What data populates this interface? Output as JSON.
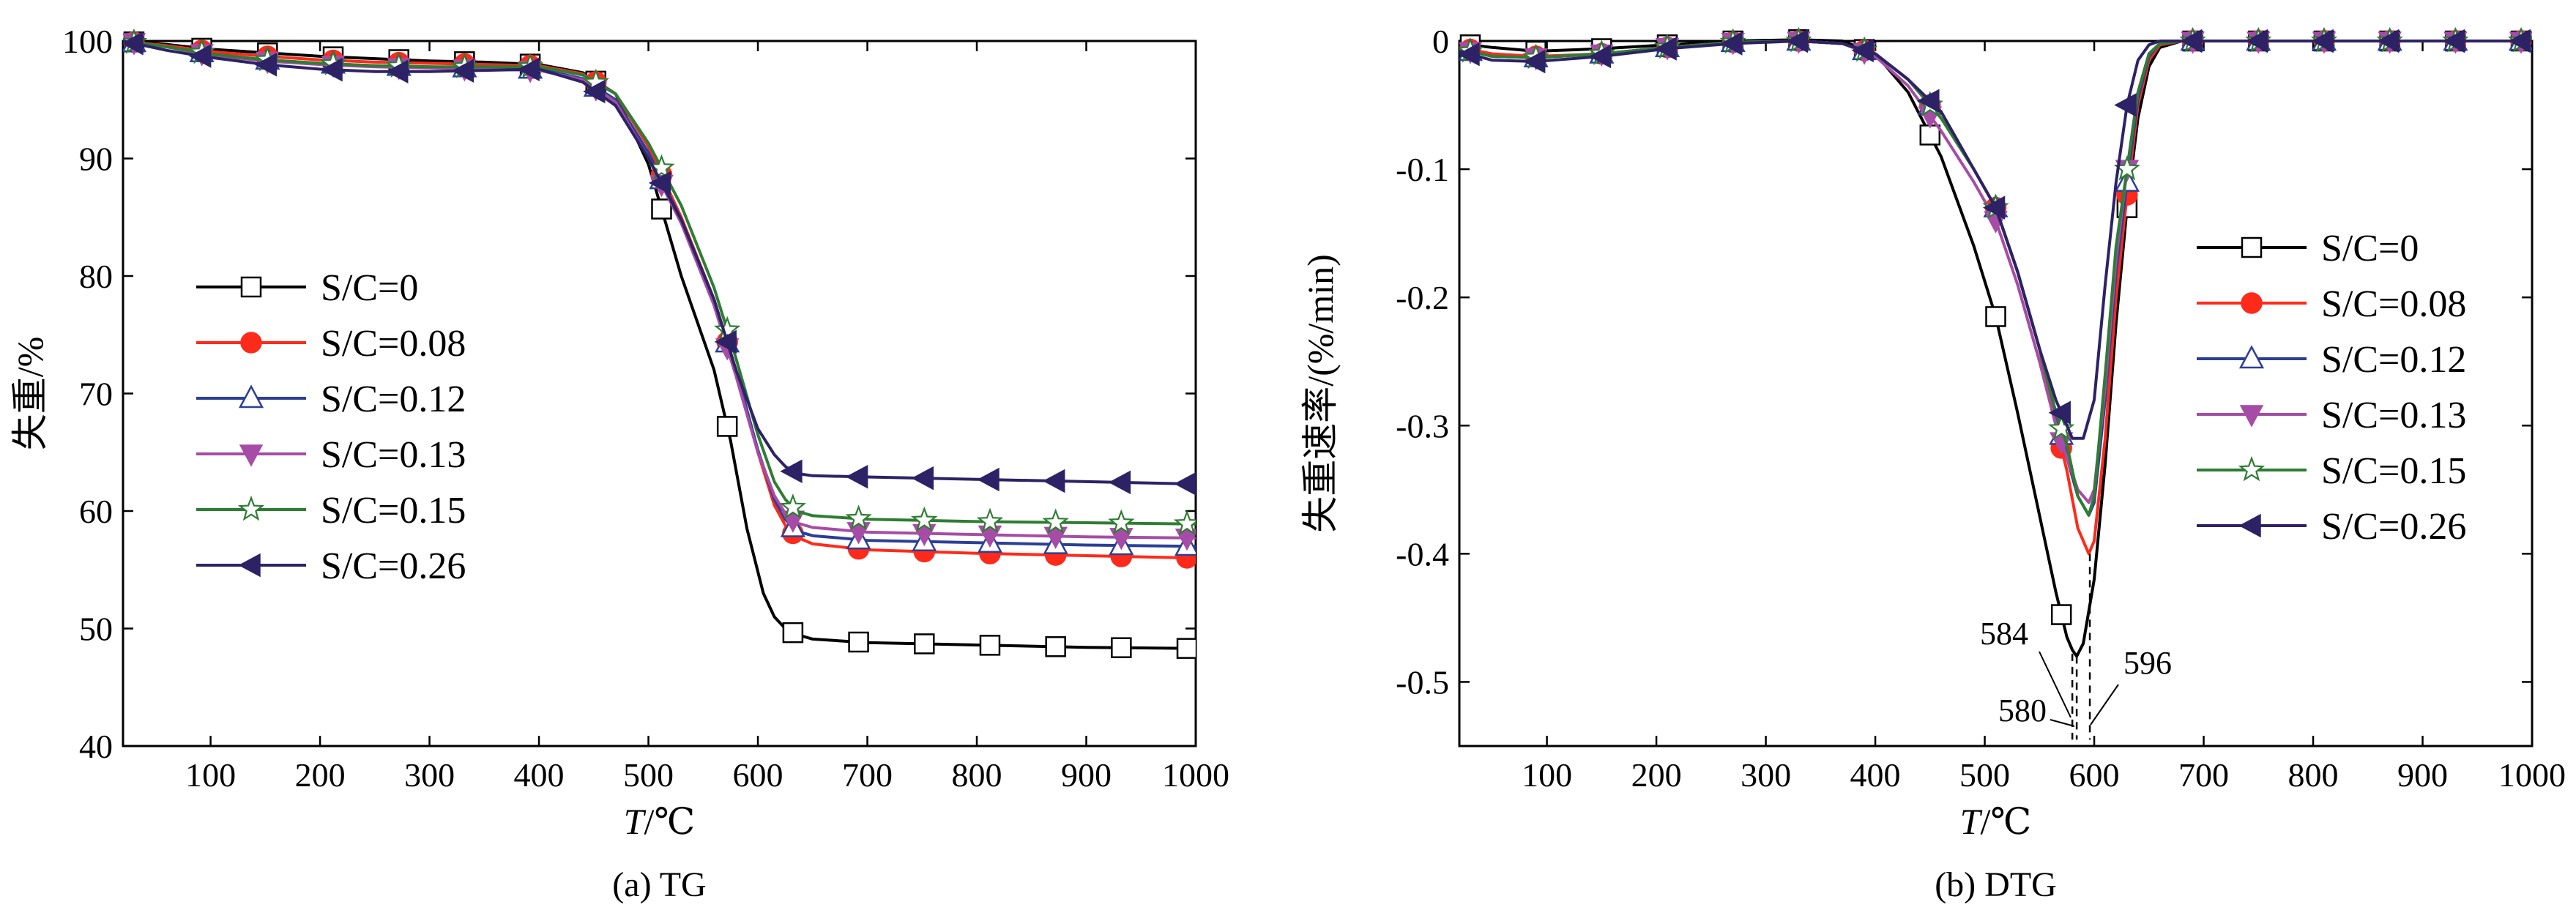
{
  "chart_data": [
    {
      "id": "tg",
      "type": "line",
      "caption": "(a) TG",
      "xlabel_italic": "T",
      "xlabel_rest": "/℃",
      "ylabel": "失重/%",
      "xlim": [
        20,
        1000
      ],
      "ylim": [
        40,
        100
      ],
      "xticks": [
        "100",
        "200",
        "300",
        "400",
        "500",
        "600",
        "700",
        "800",
        "900",
        "1000"
      ],
      "yticks": [
        "40",
        "50",
        "60",
        "70",
        "80",
        "90",
        "100"
      ],
      "legend_position": "left-middle",
      "marker_x": [
        30,
        92,
        152,
        212,
        272,
        332,
        392,
        452,
        512,
        572,
        632,
        692,
        752,
        812,
        872,
        932,
        992
      ],
      "series": [
        {
          "name": "S/C=0",
          "color": "#000000",
          "marker": "square-open",
          "x": [
            20,
            60,
            100,
            150,
            200,
            250,
            300,
            350,
            400,
            440,
            470,
            500,
            530,
            560,
            575,
            590,
            605,
            615,
            625,
            635,
            650,
            700,
            800,
            900,
            1000
          ],
          "y": [
            100,
            99.7,
            99.3,
            99,
            98.7,
            98.5,
            98.3,
            98.2,
            98,
            97.3,
            95.5,
            89.5,
            80,
            72,
            66,
            58.5,
            53,
            51,
            50,
            49.5,
            49.1,
            48.8,
            48.6,
            48.4,
            48.3
          ]
        },
        {
          "name": "S/C=0.08",
          "color": "#ff2a1a",
          "marker": "circle-filled",
          "x": [
            20,
            60,
            100,
            150,
            200,
            250,
            300,
            350,
            400,
            440,
            470,
            500,
            530,
            560,
            580,
            600,
            615,
            625,
            635,
            650,
            700,
            800,
            900,
            1000
          ],
          "y": [
            100,
            99.6,
            99.1,
            98.7,
            98.4,
            98.2,
            98.1,
            98,
            97.9,
            97.2,
            95.5,
            91,
            85,
            78,
            72,
            65,
            60.5,
            58.8,
            57.8,
            57.2,
            56.7,
            56.4,
            56.2,
            56
          ]
        },
        {
          "name": "S/C=0.12",
          "color": "#2b3f97",
          "marker": "triangle-up-open",
          "x": [
            20,
            60,
            100,
            150,
            200,
            250,
            300,
            350,
            400,
            440,
            470,
            500,
            530,
            560,
            580,
            600,
            615,
            625,
            635,
            650,
            700,
            800,
            900,
            1000
          ],
          "y": [
            100,
            99.5,
            98.9,
            98.4,
            98.1,
            97.9,
            97.8,
            97.7,
            97.6,
            96.8,
            95,
            90.5,
            84.8,
            77.8,
            72,
            65.2,
            61,
            59.3,
            58.3,
            57.9,
            57.5,
            57.3,
            57.1,
            57
          ]
        },
        {
          "name": "S/C=0.13",
          "color": "#a64ca6",
          "marker": "triangle-down-filled",
          "x": [
            20,
            60,
            100,
            150,
            200,
            250,
            300,
            350,
            400,
            440,
            470,
            500,
            530,
            560,
            580,
            600,
            615,
            625,
            635,
            650,
            700,
            800,
            900,
            1000
          ],
          "y": [
            100,
            99.5,
            98.8,
            98.3,
            98,
            97.8,
            97.7,
            97.6,
            97.5,
            96.7,
            94.8,
            90,
            84.5,
            77.5,
            71.5,
            65,
            61.3,
            59.8,
            59,
            58.6,
            58.2,
            58,
            57.8,
            57.7
          ]
        },
        {
          "name": "S/C=0.15",
          "color": "#2e7d32",
          "marker": "star-open",
          "x": [
            20,
            60,
            100,
            150,
            200,
            250,
            300,
            350,
            400,
            440,
            470,
            500,
            530,
            560,
            580,
            600,
            615,
            625,
            635,
            650,
            700,
            800,
            900,
            1000
          ],
          "y": [
            100,
            99.5,
            98.9,
            98.4,
            98.1,
            97.9,
            97.8,
            97.8,
            97.8,
            97.1,
            95.5,
            91.3,
            86,
            79,
            73,
            66.5,
            62.5,
            61,
            60,
            59.6,
            59.3,
            59.1,
            59,
            58.9
          ]
        },
        {
          "name": "S/C=0.26",
          "color": "#2e2266",
          "marker": "triangle-left-filled",
          "x": [
            20,
            60,
            100,
            150,
            200,
            250,
            300,
            350,
            400,
            440,
            470,
            500,
            530,
            560,
            580,
            600,
            615,
            625,
            635,
            650,
            700,
            800,
            900,
            1000
          ],
          "y": [
            100,
            99.2,
            98.6,
            98,
            97.6,
            97.4,
            97.4,
            97.5,
            97.6,
            96.5,
            94.5,
            90,
            84.8,
            78,
            72,
            67,
            64.8,
            63.8,
            63.2,
            63,
            62.9,
            62.7,
            62.5,
            62.3
          ]
        }
      ]
    },
    {
      "id": "dtg",
      "type": "line",
      "caption": "(b) DTG",
      "xlabel_italic": "T",
      "xlabel_rest": "/℃",
      "ylabel": "失重速率/(%/min)",
      "xlim": [
        20,
        1000
      ],
      "ylim": [
        -0.55,
        0.0
      ],
      "xticks": [
        "100",
        "200",
        "300",
        "400",
        "500",
        "600",
        "700",
        "800",
        "900",
        "1000"
      ],
      "yticks": [
        "-0.5",
        "-0.4",
        "-0.3",
        "-0.2",
        "-0.1",
        "0"
      ],
      "legend_position": "right-middle",
      "marker_x": [
        30,
        90,
        150,
        210,
        270,
        330,
        390,
        450,
        510,
        570,
        630,
        690,
        750,
        810,
        870,
        930,
        990
      ],
      "annotations": [
        "584",
        "580",
        "596"
      ],
      "series": [
        {
          "name": "S/C=0",
          "color": "#000000",
          "marker": "square-open",
          "x": [
            20,
            50,
            90,
            150,
            210,
            270,
            330,
            370,
            400,
            430,
            460,
            490,
            510,
            530,
            550,
            565,
            575,
            580,
            584,
            590,
            600,
            610,
            620,
            630,
            640,
            650,
            660,
            680,
            700,
            800,
            900,
            1000
          ],
          "y": [
            -0.002,
            -0.005,
            -0.008,
            -0.006,
            -0.003,
            0.0,
            0.001,
            0.0,
            -0.01,
            -0.04,
            -0.09,
            -0.16,
            -0.215,
            -0.29,
            -0.37,
            -0.43,
            -0.465,
            -0.475,
            -0.48,
            -0.47,
            -0.42,
            -0.33,
            -0.22,
            -0.13,
            -0.06,
            -0.02,
            -0.005,
            0.0,
            0.0,
            0.0,
            0.0,
            0.0
          ]
        },
        {
          "name": "S/C=0.08",
          "color": "#ff2a1a",
          "marker": "circle-filled",
          "x": [
            20,
            50,
            90,
            150,
            210,
            270,
            330,
            370,
            400,
            430,
            460,
            490,
            510,
            530,
            550,
            565,
            575,
            585,
            595,
            600,
            610,
            620,
            630,
            640,
            650,
            660,
            680,
            700,
            800,
            900,
            1000
          ],
          "y": [
            -0.005,
            -0.01,
            -0.012,
            -0.01,
            -0.005,
            -0.001,
            0.0,
            -0.002,
            -0.01,
            -0.03,
            -0.06,
            -0.1,
            -0.13,
            -0.18,
            -0.24,
            -0.3,
            -0.335,
            -0.38,
            -0.4,
            -0.39,
            -0.31,
            -0.2,
            -0.12,
            -0.05,
            -0.015,
            -0.003,
            0.0,
            0.0,
            0.0,
            0.0,
            0.0
          ]
        },
        {
          "name": "S/C=0.12",
          "color": "#2b3f97",
          "marker": "triangle-up-open",
          "x": [
            20,
            50,
            90,
            150,
            210,
            270,
            330,
            370,
            400,
            430,
            460,
            490,
            510,
            530,
            550,
            565,
            575,
            585,
            595,
            600,
            610,
            620,
            630,
            640,
            650,
            660,
            680,
            700,
            800,
            900,
            1000
          ],
          "y": [
            -0.006,
            -0.012,
            -0.013,
            -0.01,
            -0.005,
            -0.001,
            0.0,
            -0.002,
            -0.01,
            -0.03,
            -0.06,
            -0.1,
            -0.13,
            -0.18,
            -0.24,
            -0.29,
            -0.325,
            -0.355,
            -0.37,
            -0.36,
            -0.28,
            -0.18,
            -0.11,
            -0.045,
            -0.012,
            -0.002,
            0.0,
            0.0,
            0.0,
            0.0,
            0.0
          ]
        },
        {
          "name": "S/C=0.13",
          "color": "#a64ca6",
          "marker": "triangle-down-filled",
          "x": [
            20,
            50,
            90,
            150,
            210,
            270,
            330,
            370,
            400,
            430,
            460,
            490,
            510,
            530,
            550,
            565,
            575,
            585,
            595,
            600,
            610,
            620,
            630,
            640,
            650,
            660,
            680,
            700,
            800,
            900,
            1000
          ],
          "y": [
            -0.006,
            -0.012,
            -0.013,
            -0.01,
            -0.005,
            -0.001,
            0.0,
            -0.002,
            -0.012,
            -0.035,
            -0.07,
            -0.11,
            -0.14,
            -0.19,
            -0.25,
            -0.3,
            -0.325,
            -0.35,
            -0.36,
            -0.35,
            -0.27,
            -0.17,
            -0.1,
            -0.04,
            -0.01,
            -0.002,
            0.0,
            0.0,
            0.0,
            0.0,
            0.0
          ]
        },
        {
          "name": "S/C=0.15",
          "color": "#2e7d32",
          "marker": "star-open",
          "x": [
            20,
            50,
            90,
            150,
            210,
            270,
            330,
            370,
            400,
            430,
            460,
            490,
            510,
            530,
            550,
            565,
            575,
            585,
            595,
            600,
            610,
            620,
            630,
            640,
            650,
            660,
            680,
            700,
            800,
            900,
            1000
          ],
          "y": [
            -0.006,
            -0.012,
            -0.013,
            -0.01,
            -0.005,
            -0.001,
            0.0,
            -0.002,
            -0.01,
            -0.03,
            -0.06,
            -0.1,
            -0.13,
            -0.18,
            -0.24,
            -0.29,
            -0.315,
            -0.355,
            -0.37,
            -0.355,
            -0.26,
            -0.16,
            -0.1,
            -0.04,
            -0.01,
            -0.002,
            0.0,
            0.0,
            0.0,
            0.0,
            0.0
          ]
        },
        {
          "name": "S/C=0.26",
          "color": "#2e2266",
          "marker": "triangle-left-filled",
          "x": [
            20,
            50,
            90,
            150,
            210,
            270,
            330,
            370,
            400,
            430,
            460,
            490,
            510,
            530,
            550,
            565,
            575,
            580,
            590,
            600,
            610,
            620,
            630,
            640,
            650,
            660,
            680,
            700,
            800,
            900,
            1000
          ],
          "y": [
            -0.008,
            -0.015,
            -0.016,
            -0.012,
            -0.006,
            -0.002,
            0.0,
            -0.002,
            -0.01,
            -0.03,
            -0.055,
            -0.1,
            -0.13,
            -0.18,
            -0.24,
            -0.28,
            -0.3,
            -0.31,
            -0.31,
            -0.28,
            -0.19,
            -0.11,
            -0.05,
            -0.015,
            -0.003,
            0.0,
            0.0,
            0.0,
            0.0,
            0.0,
            0.0
          ]
        }
      ]
    }
  ]
}
